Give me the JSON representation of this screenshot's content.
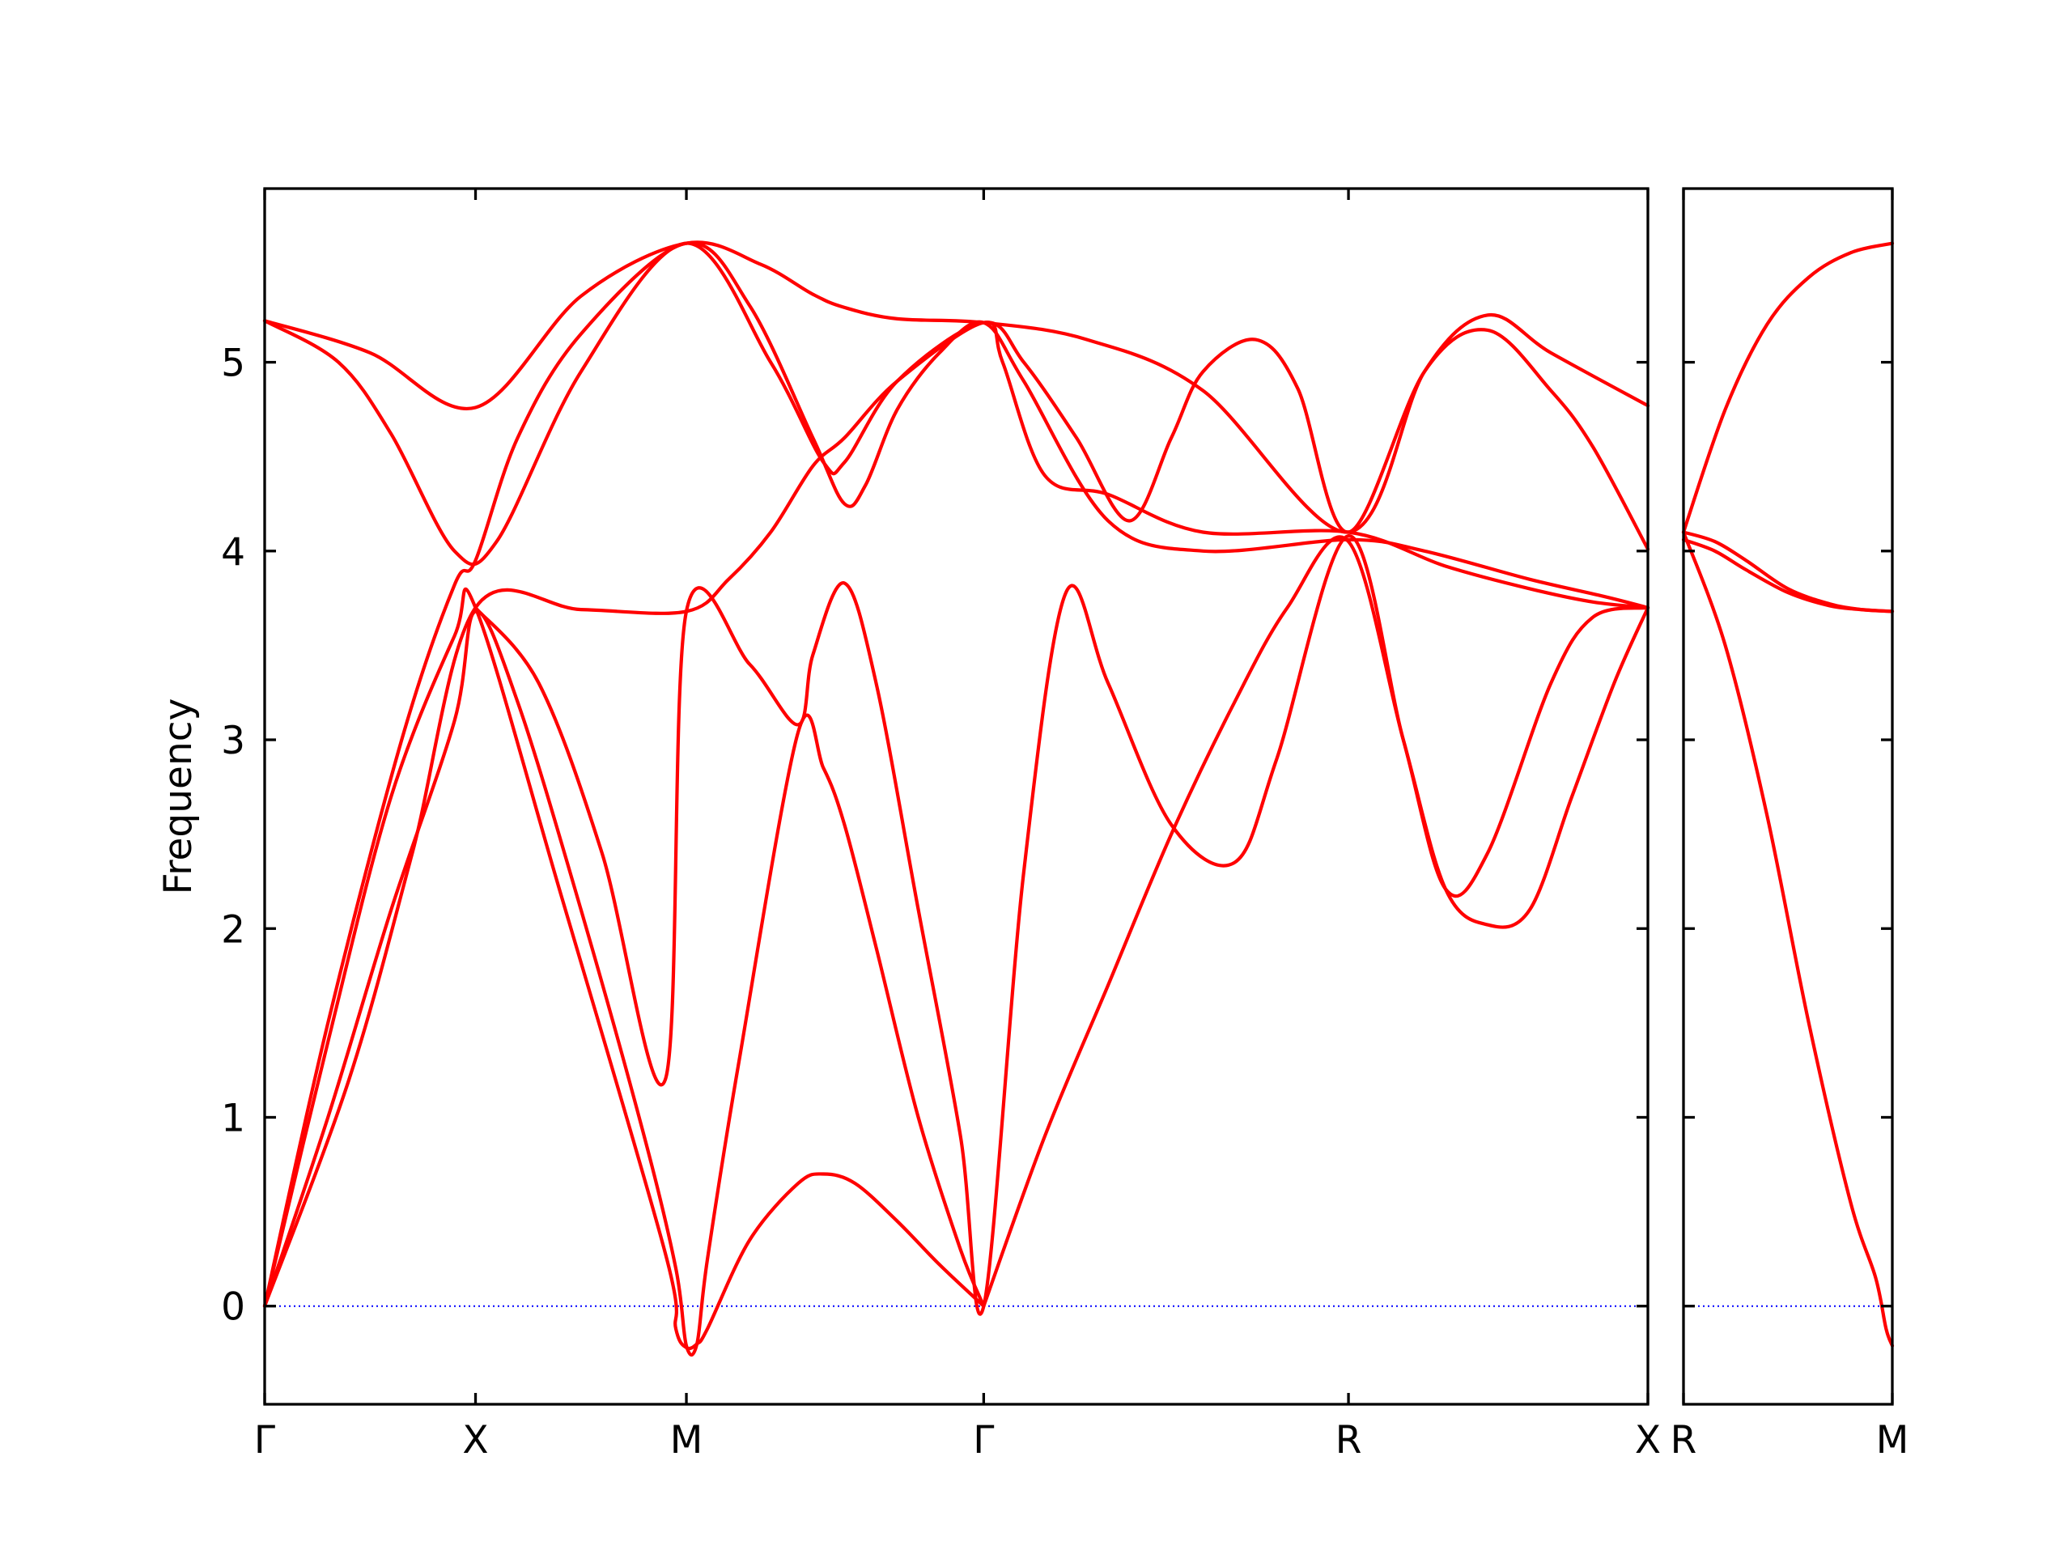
{
  "chart_data": {
    "type": "line",
    "ylabel": "Frequency",
    "ylim": [
      -0.52,
      5.92
    ],
    "yticks": [
      0,
      1,
      2,
      3,
      4,
      5
    ],
    "band_color": "#ff0000",
    "zero_line_color": "#0000ff",
    "panels": [
      {
        "xticks": [
          {
            "label": "Γ",
            "x": 0
          },
          {
            "label": "X",
            "x": 1
          },
          {
            "label": "M",
            "x": 2
          },
          {
            "label": "Γ",
            "x": 3.41
          },
          {
            "label": "R",
            "x": 5.14
          },
          {
            "label": "X",
            "x": 6.56
          }
        ],
        "xlim": [
          0,
          6.56
        ],
        "series": [
          {
            "x": [
              0,
              0.5,
              1.0,
              1.5,
              2.0,
              2.35,
              2.6,
              2.75,
              3.0,
              3.41,
              3.9,
              4.45,
              5.14,
              5.5,
              5.8,
              6.1,
              6.56
            ],
            "y": [
              5.22,
              5.05,
              4.76,
              5.35,
              5.63,
              5.52,
              5.36,
              5.29,
              5.23,
              5.21,
              5.12,
              4.85,
              4.1,
              4.95,
              5.25,
              5.05,
              4.77
            ]
          },
          {
            "x": [
              0,
              0.35,
              0.6,
              0.9,
              1.1,
              1.5,
              2.0,
              2.4,
              2.65,
              2.75,
              3.0,
              3.41,
              3.6,
              3.85,
              4.1,
              4.3,
              4.45,
              4.7,
              4.9,
              5.14,
              5.5,
              5.8,
              6.1,
              6.3,
              6.56
            ],
            "y": [
              5.22,
              5.0,
              4.62,
              4.0,
              4.05,
              4.95,
              5.63,
              5.0,
              4.47,
              4.47,
              4.9,
              5.21,
              5.0,
              4.6,
              4.16,
              4.6,
              4.95,
              5.12,
              4.86,
              4.1,
              4.95,
              5.17,
              4.85,
              4.55,
              4.01
            ]
          },
          {
            "x": [
              0,
              0.3,
              0.65,
              0.9,
              1.0,
              1.2,
              1.5,
              2.0,
              2.3,
              2.6,
              2.75,
              2.85,
              3.0,
              3.2,
              3.41,
              3.6,
              4.0,
              4.45,
              5.14,
              5.5,
              6.0,
              6.35,
              6.56
            ],
            "y": [
              0,
              1.5,
              3.0,
              3.82,
              3.95,
              4.6,
              5.15,
              5.63,
              5.3,
              4.6,
              4.25,
              4.35,
              4.75,
              5.05,
              5.21,
              4.9,
              4.16,
              4.0,
              4.06,
              4.0,
              3.85,
              3.76,
              3.7
            ]
          },
          {
            "x": [
              0,
              0.4,
              0.7,
              1.0,
              1.5,
              2.0,
              2.2,
              2.4,
              2.6,
              2.75,
              3.0,
              3.41,
              3.5,
              3.7,
              4.0,
              4.45,
              5.14,
              5.6,
              6.0,
              6.3,
              6.56
            ],
            "y": [
              0,
              1.2,
              2.4,
              3.7,
              3.69,
              3.68,
              3.85,
              4.1,
              4.45,
              4.6,
              4.9,
              5.21,
              5.0,
              4.4,
              4.3,
              4.1,
              4.1,
              3.92,
              3.8,
              3.73,
              3.7
            ]
          },
          {
            "x": [
              0,
              0.3,
              0.6,
              0.9,
              1.0,
              1.4,
              1.9,
              1.95,
              2.0,
              2.05,
              2.1,
              2.3,
              2.53,
              2.65,
              2.8,
              3.0,
              3.2,
              3.41
            ],
            "y": [
              0,
              1.4,
              2.7,
              3.55,
              3.7,
              2.2,
              0.28,
              -0.12,
              -0.22,
              -0.2,
              -0.12,
              0.35,
              0.65,
              0.7,
              0.65,
              0.45,
              0.22,
              0.0
            ]
          },
          {
            "x": [
              0,
              0.3,
              0.6,
              0.9,
              1.0,
              1.2,
              1.5,
              1.8,
              1.95,
              2.0,
              2.05,
              2.1,
              2.25,
              2.53,
              2.65,
              2.75,
              2.9,
              3.1,
              3.3,
              3.41
            ],
            "y": [
              0,
              1.0,
              2.1,
              3.1,
              3.68,
              3.2,
              2.1,
              0.9,
              0.2,
              -0.21,
              -0.2,
              0.25,
              1.3,
              3.04,
              2.85,
              2.55,
              1.9,
              1.0,
              0.3,
              0.0
            ]
          },
          {
            "x": [
              1.0,
              1.3,
              1.6,
              1.9,
              2.0,
              2.3,
              2.53,
              2.6,
              2.75,
              2.9,
              3.1,
              3.3,
              3.41,
              3.6,
              3.8,
              4.0,
              4.3,
              4.6,
              4.8,
              5.14,
              5.4,
              5.6,
              5.8,
              6.1,
              6.3,
              6.56
            ],
            "y": [
              3.7,
              3.3,
              2.4,
              1.2,
              3.68,
              3.4,
              3.08,
              3.45,
              3.83,
              3.3,
              2.1,
              0.9,
              0.0,
              2.3,
              3.78,
              3.3,
              2.55,
              2.35,
              2.9,
              4.08,
              3.0,
              2.21,
              2.4,
              3.3,
              3.65,
              3.7
            ]
          },
          {
            "x": [
              3.41,
              3.7,
              4.0,
              4.3,
              4.6,
              4.85,
              5.14,
              5.4,
              5.6,
              5.8,
              6.0,
              6.2,
              6.4,
              6.56
            ],
            "y": [
              0.0,
              0.9,
              1.7,
              2.5,
              3.2,
              3.7,
              4.05,
              3.0,
              2.21,
              2.02,
              2.1,
              2.7,
              3.3,
              3.7
            ]
          }
        ]
      },
      {
        "xticks": [
          {
            "label": "R",
            "x": 0
          },
          {
            "label": "M",
            "x": 1
          }
        ],
        "xlim": [
          0,
          1
        ],
        "series": [
          {
            "x": [
              0,
              0.2,
              0.4,
              0.6,
              0.8,
              1.0
            ],
            "y": [
              4.1,
              4.75,
              5.2,
              5.45,
              5.58,
              5.63
            ]
          },
          {
            "x": [
              0,
              0.15,
              0.3,
              0.5,
              0.7,
              0.85,
              1.0
            ],
            "y": [
              4.1,
              4.05,
              3.95,
              3.8,
              3.72,
              3.69,
              3.68
            ]
          },
          {
            "x": [
              0,
              0.15,
              0.3,
              0.5,
              0.7,
              0.85,
              1.0
            ],
            "y": [
              4.06,
              4.0,
              3.9,
              3.78,
              3.71,
              3.69,
              3.68
            ]
          },
          {
            "x": [
              0,
              0.2,
              0.4,
              0.6,
              0.8,
              0.92,
              0.97,
              1.0
            ],
            "y": [
              4.1,
              3.5,
              2.6,
              1.5,
              0.55,
              0.15,
              -0.12,
              -0.21
            ]
          }
        ]
      }
    ]
  }
}
